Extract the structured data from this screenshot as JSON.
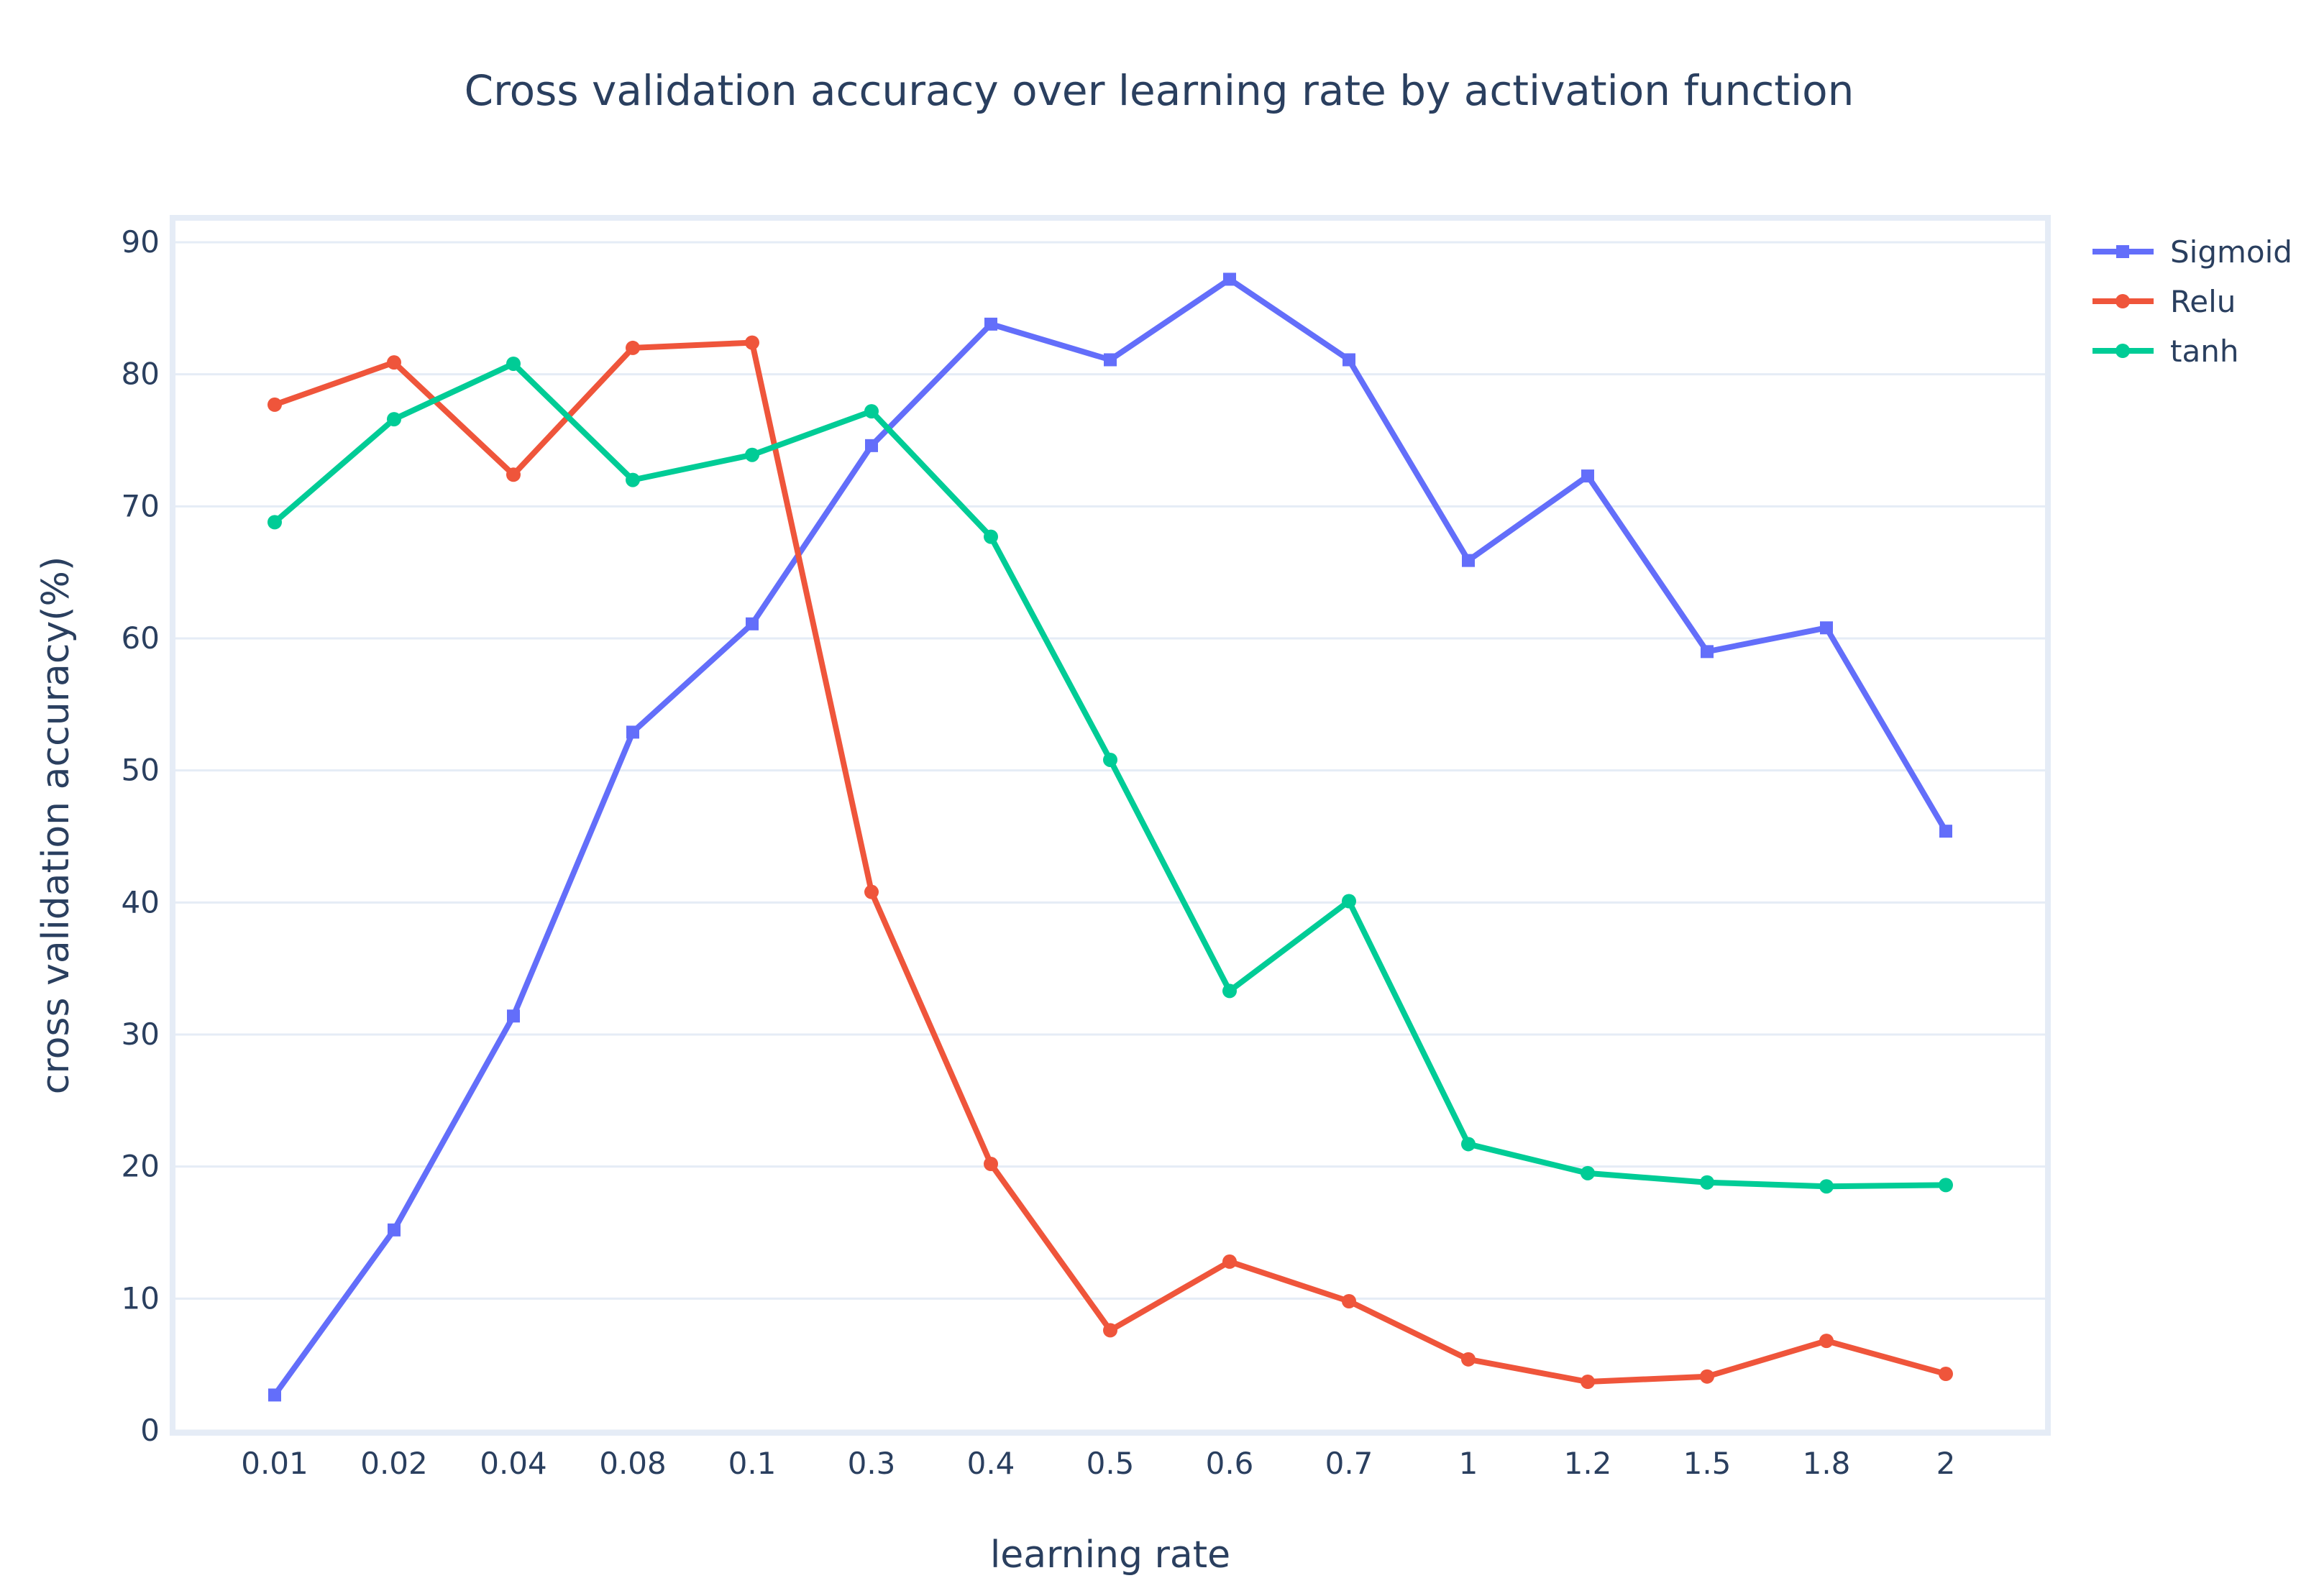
{
  "chart_data": {
    "type": "line",
    "title": "Cross validation accuracy over learning rate by activation function",
    "xlabel": "learning rate",
    "ylabel": "cross validation accuracy(%)",
    "categories": [
      "0.01",
      "0.02",
      "0.04",
      "0.08",
      "0.1",
      "0.3",
      "0.4",
      "0.5",
      "0.6",
      "0.7",
      "1",
      "1.2",
      "1.5",
      "1.8",
      "2"
    ],
    "yticks": [
      0,
      10,
      20,
      30,
      40,
      50,
      60,
      70,
      80,
      90
    ],
    "ylim": [
      0,
      92
    ],
    "grid": true,
    "legend_position": "top-right",
    "series": [
      {
        "name": "Sigmoid",
        "color": "#636efa",
        "marker": "square",
        "values": [
          2.7,
          15.2,
          31.4,
          52.9,
          61.1,
          74.6,
          83.8,
          81.1,
          87.2,
          81.1,
          65.9,
          72.3,
          59.0,
          60.8,
          45.4
        ]
      },
      {
        "name": "Relu",
        "color": "#ef553b",
        "marker": "circle",
        "values": [
          77.7,
          80.9,
          72.4,
          82.0,
          82.4,
          40.8,
          20.2,
          7.6,
          12.8,
          9.8,
          5.4,
          3.7,
          4.1,
          6.8,
          4.3
        ]
      },
      {
        "name": "tanh",
        "color": "#00cc96",
        "marker": "circle",
        "values": [
          68.8,
          76.6,
          80.8,
          72.0,
          73.9,
          77.2,
          67.7,
          50.8,
          33.3,
          40.1,
          21.7,
          19.5,
          18.8,
          18.5,
          18.6
        ]
      }
    ]
  }
}
